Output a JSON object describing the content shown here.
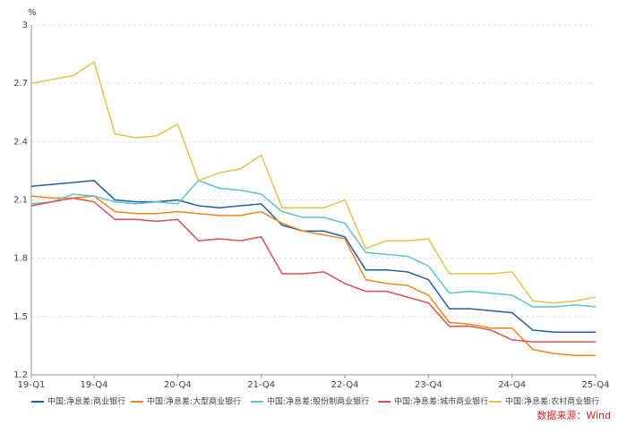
{
  "chart_data": {
    "type": "line",
    "y_unit": "%",
    "source": "数据来源：Wind",
    "categories": [
      "19-Q1",
      null,
      null,
      "19-Q4",
      null,
      null,
      null,
      "20-Q4",
      null,
      null,
      null,
      "21-Q4",
      null,
      null,
      null,
      "22-Q4",
      null,
      null,
      null,
      "23-Q4",
      null,
      null,
      null,
      "24-Q4",
      null,
      null,
      null,
      "25-Q4"
    ],
    "ylim": [
      1.2,
      3
    ],
    "yticks": [
      1.2,
      1.5,
      1.8,
      2.1,
      2.4,
      2.7,
      3
    ],
    "grid": true,
    "series": [
      {
        "name": "中国:净息差:商业银行",
        "color": "#1f5fa8",
        "values": [
          2.17,
          2.18,
          2.19,
          2.2,
          2.1,
          2.09,
          2.09,
          2.1,
          2.07,
          2.06,
          2.07,
          2.08,
          1.97,
          1.94,
          1.94,
          1.91,
          1.74,
          1.74,
          1.73,
          1.69,
          1.54,
          1.54,
          1.53,
          1.52,
          1.43,
          1.42,
          1.42,
          1.42
        ]
      },
      {
        "name": "中国:净息差:大型商业银行",
        "color": "#f0861a",
        "values": [
          2.12,
          2.11,
          2.11,
          2.12,
          2.04,
          2.03,
          2.03,
          2.04,
          2.03,
          2.02,
          2.02,
          2.04,
          1.98,
          1.94,
          1.92,
          1.9,
          1.69,
          1.67,
          1.66,
          1.61,
          1.47,
          1.46,
          1.44,
          1.44,
          1.33,
          1.31,
          1.3,
          1.3
        ]
      },
      {
        "name": "中国:净息差:股份制商业银行",
        "color": "#5bc4c8",
        "values": [
          2.08,
          2.09,
          2.13,
          2.12,
          2.09,
          2.08,
          2.09,
          2.08,
          2.2,
          2.16,
          2.15,
          2.13,
          2.04,
          2.01,
          2.01,
          1.98,
          1.83,
          1.82,
          1.81,
          1.76,
          1.62,
          1.63,
          1.62,
          1.61,
          1.55,
          1.55,
          1.56,
          1.55
        ]
      },
      {
        "name": "中国:净息差:城市商业银行",
        "color": "#e0504f",
        "values": [
          2.07,
          2.09,
          2.11,
          2.09,
          2.0,
          2.0,
          1.99,
          2.0,
          1.89,
          1.9,
          1.89,
          1.91,
          1.72,
          1.72,
          1.73,
          1.67,
          1.63,
          1.63,
          1.6,
          1.57,
          1.45,
          1.45,
          1.43,
          1.38,
          1.37,
          1.37,
          1.37,
          1.37
        ]
      },
      {
        "name": "中国:净息差:农村商业银行",
        "color": "#e8c14c",
        "values": [
          2.7,
          2.72,
          2.74,
          2.81,
          2.44,
          2.42,
          2.43,
          2.49,
          2.2,
          2.24,
          2.26,
          2.33,
          2.06,
          2.06,
          2.06,
          2.1,
          1.85,
          1.89,
          1.89,
          1.9,
          1.72,
          1.72,
          1.72,
          1.73,
          1.58,
          1.57,
          1.58,
          1.6
        ]
      }
    ]
  }
}
